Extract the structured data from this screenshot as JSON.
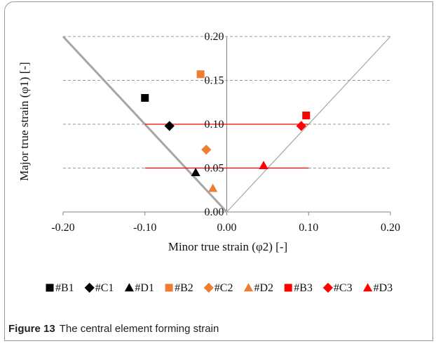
{
  "chart_data": {
    "type": "scatter",
    "xlabel": "Minor true strain (φ2) [-]",
    "ylabel": "Major true strain (φ1) [-]",
    "xlim": [
      -0.2,
      0.2
    ],
    "ylim": [
      0,
      0.2
    ],
    "x_ticks": [
      "-0.20",
      "-0.10",
      "0.00",
      "0.10",
      "0.20"
    ],
    "y_ticks": [
      "0.00",
      "0.05",
      "0.10",
      "0.15",
      "0.20"
    ],
    "grid": "horizontal dashed",
    "legend_position": "bottom",
    "series": [
      {
        "name": "#B1",
        "marker": "square",
        "color": "#000000",
        "points": [
          [
            -0.1,
            0.13
          ]
        ]
      },
      {
        "name": "#C1",
        "marker": "diamond",
        "color": "#000000",
        "points": [
          [
            -0.07,
            0.098
          ]
        ]
      },
      {
        "name": "#D1",
        "marker": "triangle",
        "color": "#000000",
        "points": [
          [
            -0.038,
            0.045
          ]
        ]
      },
      {
        "name": "#B2",
        "marker": "square",
        "color": "#ED7D31",
        "points": [
          [
            -0.032,
            0.157
          ]
        ]
      },
      {
        "name": "#C2",
        "marker": "diamond",
        "color": "#ED7D31",
        "points": [
          [
            -0.025,
            0.071
          ]
        ]
      },
      {
        "name": "#D2",
        "marker": "triangle",
        "color": "#ED7D31",
        "points": [
          [
            -0.017,
            0.027
          ]
        ]
      },
      {
        "name": "#B3",
        "marker": "square",
        "color": "#FF0000",
        "points": [
          [
            0.097,
            0.11
          ]
        ]
      },
      {
        "name": "#C3",
        "marker": "diamond",
        "color": "#FF0000",
        "points": [
          [
            0.091,
            0.098
          ]
        ]
      },
      {
        "name": "#D3",
        "marker": "triangle",
        "color": "#FF0000",
        "points": [
          [
            0.045,
            0.053
          ]
        ]
      }
    ],
    "reference_lines": [
      {
        "name": "left-boundary-line",
        "color": "#A6A6A6",
        "x": [
          -0.2,
          0.0
        ],
        "y": [
          0.2,
          0.0
        ]
      },
      {
        "name": "right-boundary-line",
        "color": "#A6A6A6",
        "x": [
          0.0,
          0.2
        ],
        "y": [
          0.0,
          0.2
        ]
      },
      {
        "name": "red-line-upper",
        "color": "#FF0000",
        "x": [
          -0.1,
          0.1
        ],
        "y": [
          0.1,
          0.1
        ]
      },
      {
        "name": "red-line-lower",
        "color": "#FF0000",
        "x": [
          -0.1,
          0.1
        ],
        "y": [
          0.05,
          0.05
        ]
      }
    ]
  },
  "caption": {
    "label": "Figure 13",
    "text": "The central element forming strain"
  }
}
